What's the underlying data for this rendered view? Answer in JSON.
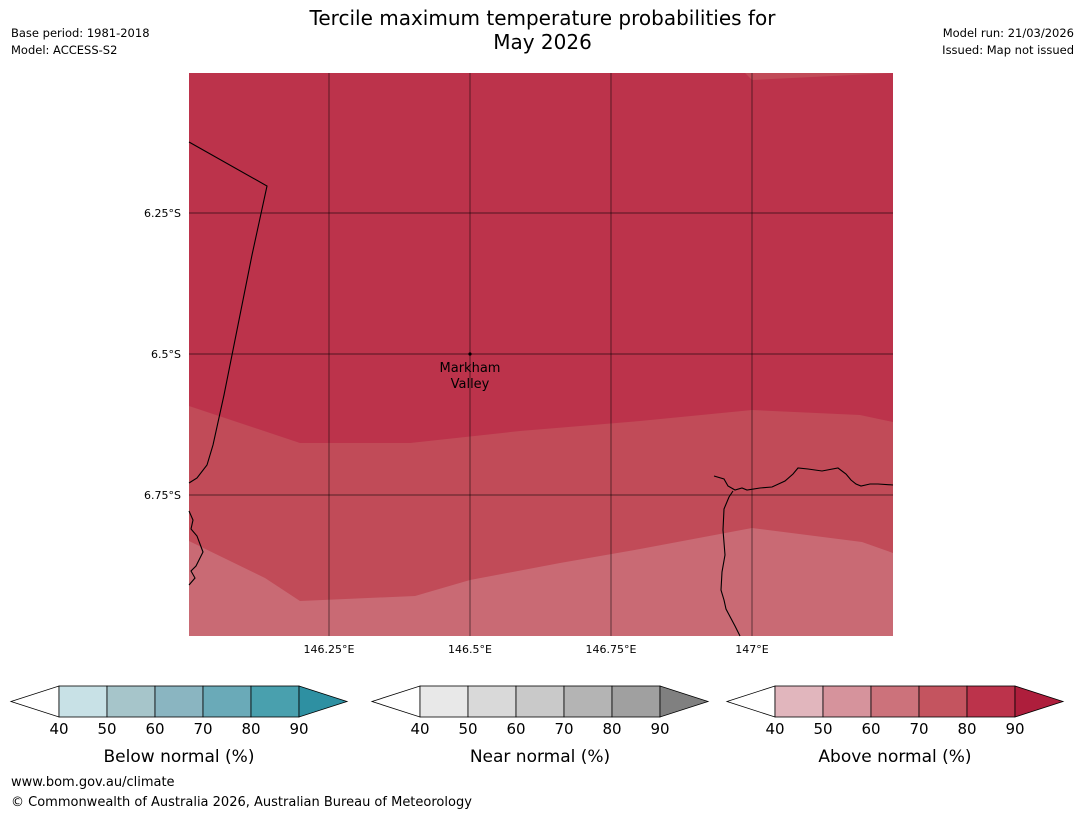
{
  "header": {
    "title_line1": "Tercile maximum temperature probabilities for",
    "title_line2": "May 2026",
    "base_period": "Base period: 1981-2018",
    "model": "Model: ACCESS-S2",
    "model_run": "Model run: 21/03/2026",
    "issued": "Issued: Map not issued"
  },
  "map": {
    "lat_labels": [
      "6.25°S",
      "6.5°S",
      "6.75°S"
    ],
    "lon_labels": [
      "146.25°E",
      "146.5°E",
      "146.75°E",
      "147°E"
    ],
    "place": {
      "name_line1": "Markham",
      "name_line2": "Valley",
      "lon": 146.5,
      "lat": -6.5
    },
    "category": "Above normal",
    "colors": {
      "above_80_90": "#bc334b",
      "above_70_80": "#c14b58",
      "above_60_70": "#c96a74"
    }
  },
  "legends": [
    {
      "title": "Below normal (%)",
      "ticks": [
        "40",
        "50",
        "60",
        "70",
        "80",
        "90"
      ],
      "colors": [
        "#c8e1e6",
        "#a6c5ca",
        "#8ab5c1",
        "#6aaab8",
        "#49a0ae"
      ],
      "arrow": "#2e90a2"
    },
    {
      "title": "Near normal (%)",
      "ticks": [
        "40",
        "50",
        "60",
        "70",
        "80",
        "90"
      ],
      "colors": [
        "#e8e8e8",
        "#d9d9d9",
        "#c9c9c9",
        "#b4b4b4",
        "#a0a0a0"
      ],
      "arrow": "#808080"
    },
    {
      "title": "Above normal (%)",
      "ticks": [
        "40",
        "50",
        "60",
        "70",
        "80",
        "90"
      ],
      "colors": [
        "#e1b6bd",
        "#d6939c",
        "#cc727b",
        "#c4545f",
        "#bc334b"
      ],
      "arrow": "#ae1e3c"
    }
  ],
  "footer": {
    "url": "www.bom.gov.au/climate",
    "copyright": "© Commonwealth of Australia 2026, Australian Bureau of Meteorology"
  }
}
